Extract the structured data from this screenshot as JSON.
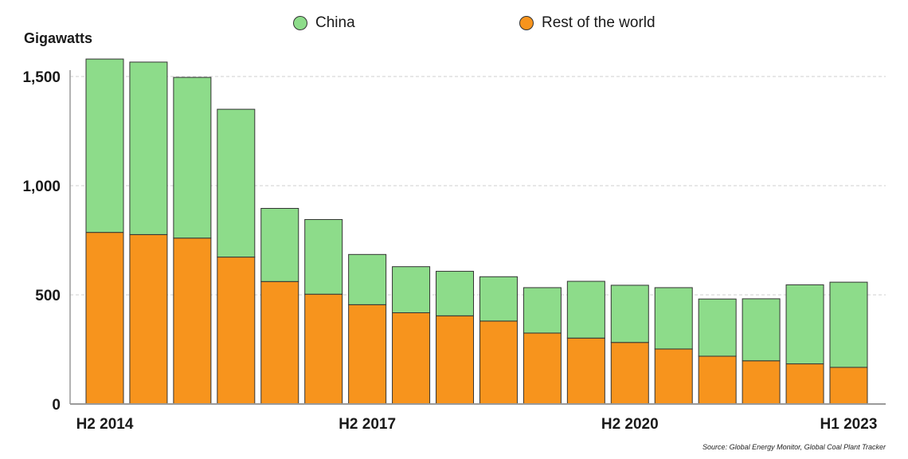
{
  "legend": {
    "china": {
      "label": "China",
      "color": "#8ddc8a"
    },
    "rest": {
      "label": "Rest of the world",
      "color": "#f7941d"
    }
  },
  "source": "Source: Global Energy Monitor, Global Coal Plant Tracker",
  "chart_data": {
    "type": "bar",
    "stacked": true,
    "ylabel": "Gigawatts",
    "ylim": [
      0,
      1500
    ],
    "yticks": [
      0,
      500,
      1000,
      1500
    ],
    "ytick_labels": [
      "0",
      "500",
      "1,000",
      "1,500"
    ],
    "grid": true,
    "legend_position": "top",
    "categories": [
      "H2 2014",
      "H1 2015",
      "H2 2015",
      "H1 2016",
      "H2 2016",
      "H1 2017",
      "H2 2017",
      "H1 2018",
      "H2 2018",
      "H1 2019",
      "H2 2019",
      "H1 2020",
      "H2 2020",
      "H1 2021",
      "H2 2021",
      "H1 2022",
      "H2 2022",
      "H1 2023"
    ],
    "shown_xtick_labels": [
      "H2 2014",
      "H2 2017",
      "H2 2020",
      "H1 2023"
    ],
    "series": [
      {
        "name": "Rest of the world",
        "color": "#f7941d",
        "values": [
          786,
          776,
          760,
          673,
          561,
          503,
          455,
          418,
          404,
          380,
          325,
          302,
          282,
          252,
          219,
          198,
          184,
          168
        ]
      },
      {
        "name": "China",
        "color": "#8ddc8a",
        "values": [
          794,
          790,
          736,
          677,
          335,
          342,
          230,
          211,
          204,
          203,
          208,
          260,
          262,
          281,
          262,
          284,
          362,
          390
        ]
      }
    ]
  }
}
